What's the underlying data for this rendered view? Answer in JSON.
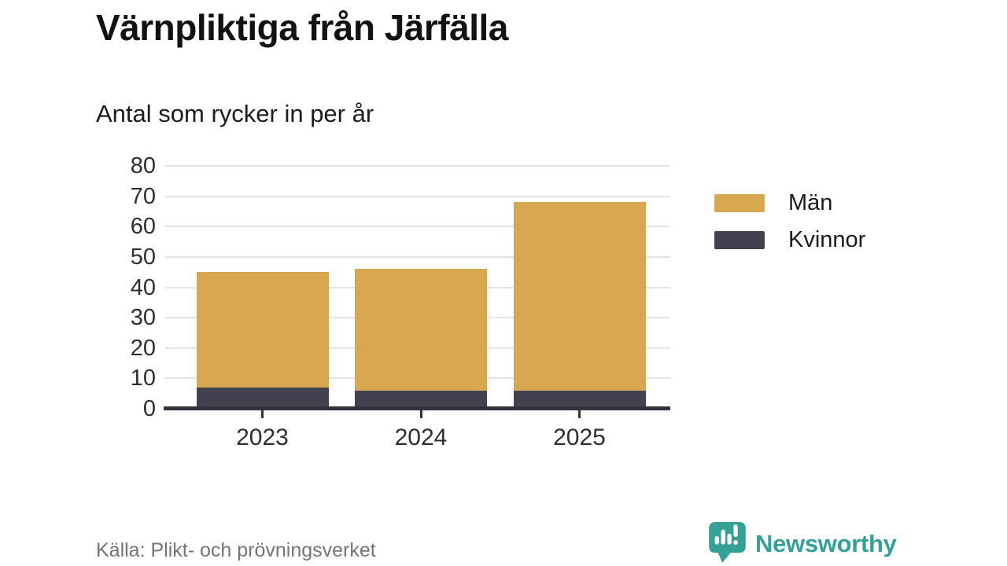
{
  "title": "Värnpliktiga från Järfälla",
  "subtitle": "Antal som rycker in per år",
  "chart_data": {
    "type": "bar",
    "stacked": true,
    "title": "Värnpliktiga från Järfälla",
    "subtitle": "Antal som rycker in per år",
    "categories": [
      "2023",
      "2024",
      "2025"
    ],
    "series": [
      {
        "name": "Män",
        "color": "#D8A850",
        "values": [
          38,
          40,
          62
        ]
      },
      {
        "name": "Kvinnor",
        "color": "#42414F",
        "values": [
          7,
          6,
          6
        ]
      }
    ],
    "stack_order_bottom_to_top": [
      "Kvinnor",
      "Män"
    ],
    "stacked_totals": [
      45,
      46,
      68
    ],
    "xlabel": "",
    "ylabel": "",
    "ylim": [
      0,
      80
    ],
    "yticks": [
      0,
      10,
      20,
      30,
      40,
      50,
      60,
      70,
      80
    ],
    "grid": true,
    "legend_position": "right"
  },
  "legend": {
    "items": [
      {
        "label": "Män",
        "color": "#D8A850"
      },
      {
        "label": "Kvinnor",
        "color": "#42414F"
      }
    ]
  },
  "footer": {
    "source": "Källa: Plikt- och prövningsverket"
  },
  "brand": {
    "name": "Newsworthy",
    "color": "#35A096"
  },
  "colors": {
    "men": "#D8A850",
    "women": "#42414F",
    "grid": "#E3E3E3",
    "axis": "#32313C",
    "tick_text": "#2E2D38",
    "source_text": "#74747C",
    "background": "#FFFFFF"
  }
}
